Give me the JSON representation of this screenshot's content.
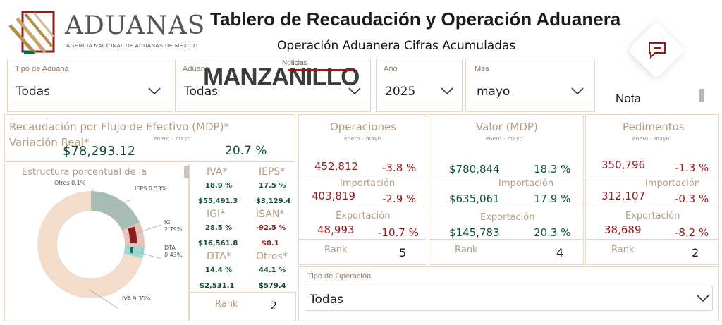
{
  "header": {
    "logo_name": "ADUANAS",
    "logo_sub": "AGENCIA NACIONAL DE ADUANAS DE MÉXICO",
    "title": "Tablero de Recaudación y Operación Aduanera",
    "subtitle": "Operación Aduanera Cifras Acumuladas",
    "watermark_top": "Noticias",
    "watermark_main": "MANZANILLO"
  },
  "filters": {
    "tipo_aduana": {
      "label": "Tipo de Aduana",
      "value": "Todas"
    },
    "aduana": {
      "label": "Aduana",
      "value": "Todas"
    },
    "anio": {
      "label": "Año",
      "value": "2025"
    },
    "mes": {
      "label": "Mes",
      "value": "mayo"
    },
    "nota_label": "Nota"
  },
  "recaudacion": {
    "title": "Recaudación por Flujo de Efectivo (MDP)*",
    "variacion_label": "Variación Real*",
    "period": "enero - mayo",
    "total": "$78,293.12",
    "variacion": "20.7 %"
  },
  "estructura": {
    "title": "Estructura porcentual de la",
    "slices_labels": [
      {
        "name": "Otros 0.1%"
      },
      {
        "name": "IEPS 0.53%"
      },
      {
        "name": "IGI 2.79%"
      },
      {
        "name": "DTA 0.43%"
      },
      {
        "name": "IVA 9.35%"
      }
    ]
  },
  "impuestos": {
    "iva": {
      "label": "IVA*",
      "pct": "18.9 %",
      "amount": "$55,491.3"
    },
    "ieps": {
      "label": "IEPS*",
      "pct": "17.5 %",
      "amount": "$3,129.4"
    },
    "igi": {
      "label": "IGI*",
      "pct": "28.5 %",
      "amount": "$16,561.8"
    },
    "isan": {
      "label": "ISAN*",
      "pct": "-92.5 %",
      "amount": "$0.1"
    },
    "dta": {
      "label": "DTA*",
      "pct": "14.4 %",
      "amount": "$2,531.1"
    },
    "otros": {
      "label": "Otros*",
      "pct": "44.1 %",
      "amount": "$579.4"
    },
    "rank_label": "Rank",
    "rank_value": "2"
  },
  "operaciones": {
    "title": "Operaciones",
    "period": "enero - mayo",
    "total": "452,812",
    "total_var": "-3.8 %",
    "importacion_label": "Importación",
    "importacion": "403,819",
    "importacion_var": "-2.9 %",
    "exportacion_label": "Exportación",
    "exportacion": "48,993",
    "exportacion_var": "-10.7 %",
    "rank_label": "Rank",
    "rank_value": "5"
  },
  "valor": {
    "title": "Valor (MDP)",
    "period": "enero - mayo",
    "total": "$780,844",
    "total_var": "18.3 %",
    "importacion_label": "Importación",
    "importacion": "$635,061",
    "importacion_var": "17.9 %",
    "exportacion_label": "Exportación",
    "exportacion": "$145,783",
    "exportacion_var": "20.3 %",
    "rank_label": "Rank",
    "rank_value": "4"
  },
  "pedimentos": {
    "title": "Pedimentos",
    "period": "enero - mayo",
    "total": "350,796",
    "total_var": "-1.3 %",
    "importacion_label": "Importación",
    "importacion": "312,107",
    "importacion_var": "-0.3 %",
    "exportacion_label": "Exportación",
    "exportacion": "38,689",
    "exportacion_var": "-8.2 %",
    "rank_label": "Rank",
    "rank_value": "2"
  },
  "tipo_operacion": {
    "label": "Tipo de Operación",
    "value": "Todas"
  },
  "icons": {
    "chat": "chat-bubble-icon",
    "chevron": "chevron-down-icon"
  },
  "colors": {
    "green": "#0f4f3c",
    "red": "#8c1d1d",
    "tan": "#b59c84",
    "border": "#ead7c2",
    "donut_iva": "#f2dccb",
    "donut_ieps": "#a7bdb4",
    "donut_igi_light": "#e7c2b9",
    "donut_igi_dark": "#8c1d1d",
    "donut_dta": "#9dd9d0",
    "donut_otros": "#0f6b5a"
  }
}
